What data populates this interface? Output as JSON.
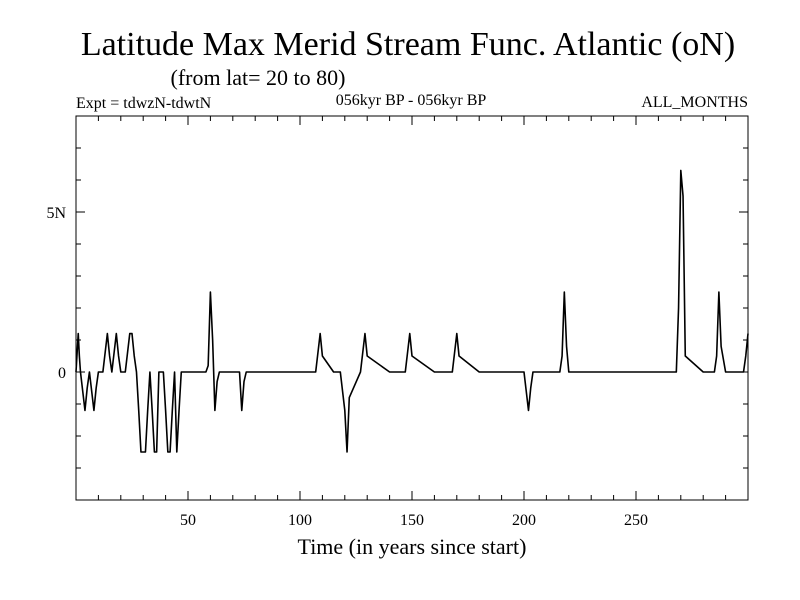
{
  "chart_data": {
    "type": "line",
    "title": "Latitude Max Merid Stream Func. Atlantic (oN)",
    "subtitle": "(from lat= 20 to 80)",
    "experiment_label": "Expt = tdwzN-tdwtN",
    "period_label": "056kyr BP - 056kyr BP",
    "season_label": "ALL_MONTHS",
    "xlabel": "Time (in years since start)",
    "ylabel": "",
    "xlim": [
      0,
      300
    ],
    "ylim": [
      -4,
      8
    ],
    "x_ticks": [
      50,
      100,
      150,
      200,
      250
    ],
    "x_tick_labels": [
      "50",
      "100",
      "150",
      "200",
      "250"
    ],
    "y_ticks": [
      0,
      5
    ],
    "y_tick_labels": [
      "0",
      "5N"
    ],
    "series": [
      {
        "name": "tdwzN-tdwtN",
        "color": "#000000",
        "x": [
          0,
          0.5,
          1,
          1.5,
          2,
          3,
          4,
          5,
          6,
          7,
          8,
          9,
          10,
          11,
          12,
          13,
          14,
          15,
          16,
          17,
          18,
          19,
          20,
          21,
          22,
          23,
          24,
          25,
          26,
          27,
          28,
          29,
          30,
          31,
          32,
          33,
          34,
          35,
          36,
          37,
          38,
          39,
          40,
          41,
          42,
          43,
          44,
          45,
          46,
          47,
          48,
          49,
          50,
          55,
          58,
          59,
          60,
          61,
          62,
          63,
          64,
          66,
          70,
          73,
          74,
          75,
          76,
          80,
          90,
          100,
          105,
          107,
          108,
          109,
          110,
          115,
          118,
          119,
          120,
          121,
          122,
          127,
          128,
          129,
          130,
          140,
          147,
          148,
          149,
          150,
          160,
          168,
          169,
          170,
          171,
          180,
          190,
          200,
          201,
          202,
          203,
          204,
          205,
          210,
          216,
          217,
          218,
          219,
          220,
          230,
          240,
          250,
          260,
          268,
          269,
          270,
          271,
          272,
          280,
          284,
          285,
          286,
          287,
          288,
          290,
          295,
          298,
          299,
          300
        ],
        "values": [
          0,
          0.6,
          1.2,
          0.5,
          0,
          -0.6,
          -1.2,
          -0.5,
          0,
          -0.6,
          -1.2,
          -0.5,
          0,
          0,
          0,
          0.6,
          1.2,
          0.5,
          0,
          0.6,
          1.2,
          0.5,
          0,
          0,
          0,
          0.6,
          1.2,
          1.2,
          0.5,
          0,
          -1.2,
          -2.5,
          -2.5,
          -2.5,
          -1.2,
          0,
          -1.2,
          -2.5,
          -2.5,
          0,
          0,
          0,
          -1.2,
          -2.5,
          -2.5,
          -1.2,
          0,
          -2.5,
          -1.2,
          0,
          0,
          0,
          0,
          0,
          0,
          0.2,
          2.5,
          1.0,
          -1.2,
          -0.3,
          0,
          0,
          0,
          0,
          -1.2,
          -0.3,
          0,
          0,
          0,
          0,
          0,
          0,
          0.6,
          1.2,
          0.5,
          0,
          0,
          -0.6,
          -1.2,
          -2.5,
          -0.8,
          0,
          0.6,
          1.2,
          0.5,
          0,
          0,
          0.6,
          1.2,
          0.5,
          0,
          0,
          0.6,
          1.2,
          0.5,
          0,
          0,
          0,
          -0.6,
          -1.2,
          -0.5,
          0,
          0,
          0,
          0,
          0.5,
          2.5,
          0.8,
          0,
          0,
          0,
          0,
          0,
          0,
          2.0,
          6.3,
          5.5,
          0.5,
          0,
          0,
          0,
          0.5,
          2.5,
          0.8,
          0,
          0,
          0,
          0.5,
          1.2
        ]
      }
    ]
  }
}
